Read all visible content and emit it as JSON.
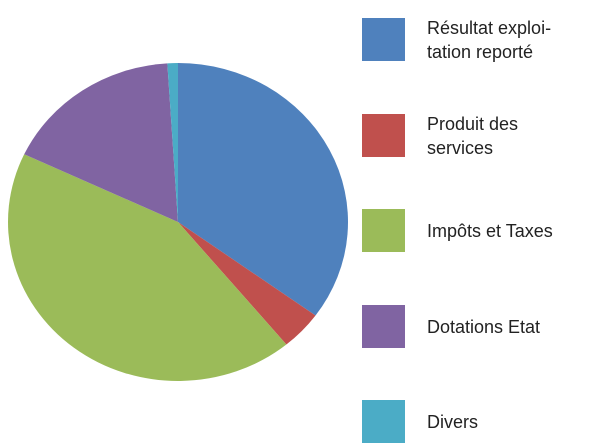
{
  "chart_data": {
    "type": "pie",
    "categories": [
      "Résultat  exploi-\ntation reporté",
      "Produit des\nservices",
      "Impôts et Taxes",
      "Dotations Etat",
      "Divers"
    ],
    "values": [
      35,
      4,
      43,
      17,
      1
    ],
    "colors": [
      "#4f81bd",
      "#c0504d",
      "#9bbb59",
      "#8064a2",
      "#4bacc6"
    ]
  }
}
